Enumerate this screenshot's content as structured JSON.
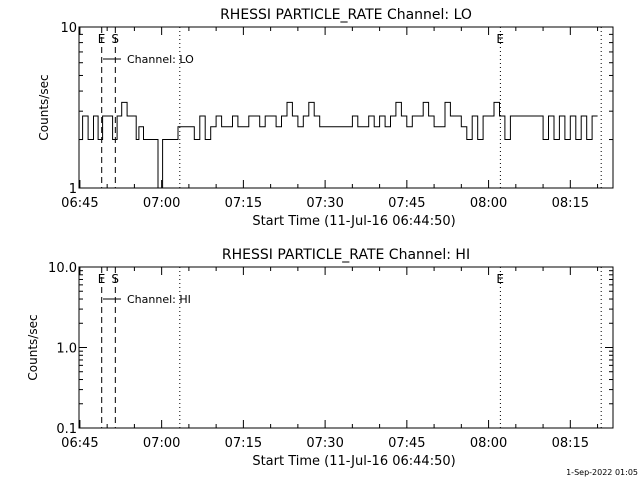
{
  "chart_data": [
    {
      "type": "line",
      "title": "RHESSI PARTICLE_RATE Channel: LO",
      "xlabel": "Start Time (11-Jul-16 06:44:50)",
      "ylabel": "Counts/sec",
      "yscale": "log",
      "ylim": [
        1,
        10
      ],
      "ytick_labels": [
        "1",
        "10"
      ],
      "ytick_values": [
        1,
        10
      ],
      "xlim": [
        "06:44:50",
        "08:22:50"
      ],
      "xtick_labels": [
        "06:45",
        "07:00",
        "07:15",
        "07:30",
        "07:45",
        "08:00",
        "08:15"
      ],
      "series": [
        {
          "name": "Channel: LO",
          "x": [
            "06:44:50",
            "06:45:30",
            "06:46:30",
            "06:47:30",
            "06:48:20",
            "06:49:10",
            "06:50:10",
            "06:51:00",
            "06:51:50",
            "06:52:40",
            "06:53:40",
            "06:54:30",
            "06:55:20",
            "06:55:50",
            "06:56:40",
            "06:57:30",
            "06:58:30",
            "06:59:20",
            "07:00:10",
            "07:01:10",
            "07:02:00",
            "07:03:00",
            "07:04:00",
            "07:05:00",
            "07:06:00",
            "07:07:00",
            "07:08:00",
            "07:09:00",
            "07:10:00",
            "07:11:00",
            "07:12:00",
            "07:13:00",
            "07:14:00",
            "07:15:00",
            "07:16:00",
            "07:17:00",
            "07:18:00",
            "07:19:00",
            "07:20:00",
            "07:21:00",
            "07:22:00",
            "07:23:00",
            "07:24:00",
            "07:25:00",
            "07:26:00",
            "07:27:00",
            "07:28:00",
            "07:29:00",
            "07:30:00",
            "07:31:00",
            "07:32:00",
            "07:33:00",
            "07:34:00",
            "07:35:00",
            "07:36:00",
            "07:37:00",
            "07:38:00",
            "07:39:00",
            "07:40:00",
            "07:41:00",
            "07:42:00",
            "07:43:00",
            "07:44:00",
            "07:45:00",
            "07:46:00",
            "07:47:00",
            "07:48:00",
            "07:49:00",
            "07:50:00",
            "07:51:00",
            "07:52:00",
            "07:53:00",
            "07:54:00",
            "07:55:00",
            "07:56:00",
            "07:57:00",
            "07:58:00",
            "07:59:00",
            "08:00:00",
            "08:01:00",
            "08:02:00",
            "08:03:00",
            "08:04:00",
            "08:05:00",
            "08:06:00",
            "08:07:00",
            "08:08:00",
            "08:09:00",
            "08:10:00",
            "08:11:00",
            "08:12:00",
            "08:13:00",
            "08:14:00",
            "08:15:00",
            "08:16:00",
            "08:17:00",
            "08:18:00",
            "08:19:00"
          ],
          "y": [
            2.0,
            2.8,
            2.0,
            2.8,
            2.0,
            2.8,
            2.8,
            2.0,
            2.8,
            3.4,
            2.8,
            2.8,
            2.0,
            2.4,
            2.0,
            2.0,
            2.0,
            1.0,
            2.0,
            2.0,
            2.0,
            2.4,
            2.4,
            2.4,
            2.0,
            2.8,
            2.0,
            2.4,
            2.8,
            2.4,
            2.4,
            2.8,
            2.4,
            2.4,
            2.8,
            2.8,
            2.4,
            2.8,
            2.8,
            2.4,
            2.8,
            3.4,
            2.8,
            2.4,
            2.8,
            3.4,
            2.8,
            2.4,
            2.4,
            2.4,
            2.4,
            2.4,
            2.4,
            2.8,
            2.4,
            2.4,
            2.8,
            2.4,
            2.8,
            2.4,
            2.8,
            3.4,
            2.8,
            2.4,
            2.8,
            2.8,
            3.4,
            2.8,
            2.4,
            2.4,
            3.4,
            2.8,
            2.8,
            2.4,
            2.0,
            2.8,
            2.0,
            2.8,
            2.8,
            3.4,
            2.8,
            2.0,
            2.8,
            2.8,
            2.8,
            2.8,
            2.8,
            2.8,
            2.0,
            2.8,
            2.0,
            2.8,
            2.0,
            2.8,
            2.0,
            2.8,
            2.0,
            2.8
          ]
        }
      ],
      "markers": [
        {
          "label": "E",
          "time": "06:49:00",
          "style": "dashed"
        },
        {
          "label": "S",
          "time": "06:51:30",
          "style": "dashed"
        },
        {
          "label": "",
          "time": "07:03:20",
          "style": "dotted"
        },
        {
          "label": "E",
          "time": "08:02:10",
          "style": "dotted"
        },
        {
          "label": "",
          "time": "08:20:40",
          "style": "dotted"
        }
      ],
      "legend": "top-left"
    },
    {
      "type": "line",
      "title": "RHESSI PARTICLE_RATE Channel: HI",
      "xlabel": "Start Time (11-Jul-16 06:44:50)",
      "ylabel": "Counts/sec",
      "yscale": "log",
      "ylim": [
        0.1,
        10
      ],
      "ytick_labels": [
        "0.1",
        "1.0",
        "10.0"
      ],
      "ytick_values": [
        0.1,
        1,
        10
      ],
      "xlim": [
        "06:44:50",
        "08:22:50"
      ],
      "xtick_labels": [
        "06:45",
        "07:00",
        "07:15",
        "07:30",
        "07:45",
        "08:00",
        "08:15"
      ],
      "series": [
        {
          "name": "Channel: HI",
          "x": [],
          "y": []
        }
      ],
      "markers": [
        {
          "label": "E",
          "time": "06:49:00",
          "style": "dashed"
        },
        {
          "label": "S",
          "time": "06:51:30",
          "style": "dashed"
        },
        {
          "label": "",
          "time": "07:03:20",
          "style": "dotted"
        },
        {
          "label": "E",
          "time": "08:02:10",
          "style": "dotted"
        },
        {
          "label": "",
          "time": "08:20:40",
          "style": "dotted"
        }
      ],
      "legend": "top-left"
    }
  ],
  "footer": {
    "timestamp": "1-Sep-2022 01:05"
  }
}
